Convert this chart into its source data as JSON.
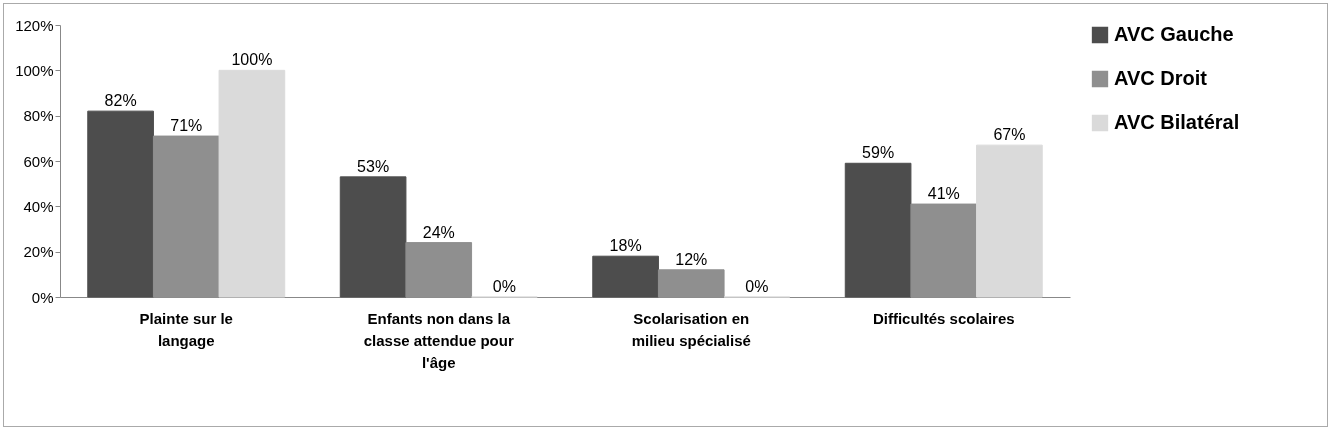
{
  "chart_data": {
    "type": "bar",
    "categories": [
      "Plainte sur le langage",
      "Enfants non dans la classe attendue pour l'âge",
      "Scolarisation en milieu spécialisé",
      "Difficultés scolaires"
    ],
    "series": [
      {
        "name": "AVC Gauche",
        "color": "#4d4d4d",
        "values": [
          82,
          53,
          18,
          59
        ],
        "value_labels": [
          "82%",
          "53%",
          "18%",
          "59%"
        ]
      },
      {
        "name": "AVC Droit",
        "color": "#8f8f8f",
        "values": [
          71,
          24,
          12,
          41
        ],
        "value_labels": [
          "71%",
          "24%",
          "12%",
          "41%"
        ]
      },
      {
        "name": "AVC Bilatéral",
        "color": "#dadada",
        "values": [
          100,
          0,
          0,
          67
        ],
        "value_labels": [
          "100%",
          "0%",
          "0%",
          "67%"
        ]
      }
    ],
    "ylim": [
      0,
      120
    ],
    "yticks": [
      {
        "value": 0,
        "label": "0%"
      },
      {
        "value": 20,
        "label": "20%"
      },
      {
        "value": 40,
        "label": "40%"
      },
      {
        "value": 60,
        "label": "60%"
      },
      {
        "value": 80,
        "label": "80%"
      },
      {
        "value": 100,
        "label": "100%"
      },
      {
        "value": 120,
        "label": "120%"
      }
    ],
    "grid": false,
    "legend": "right"
  }
}
